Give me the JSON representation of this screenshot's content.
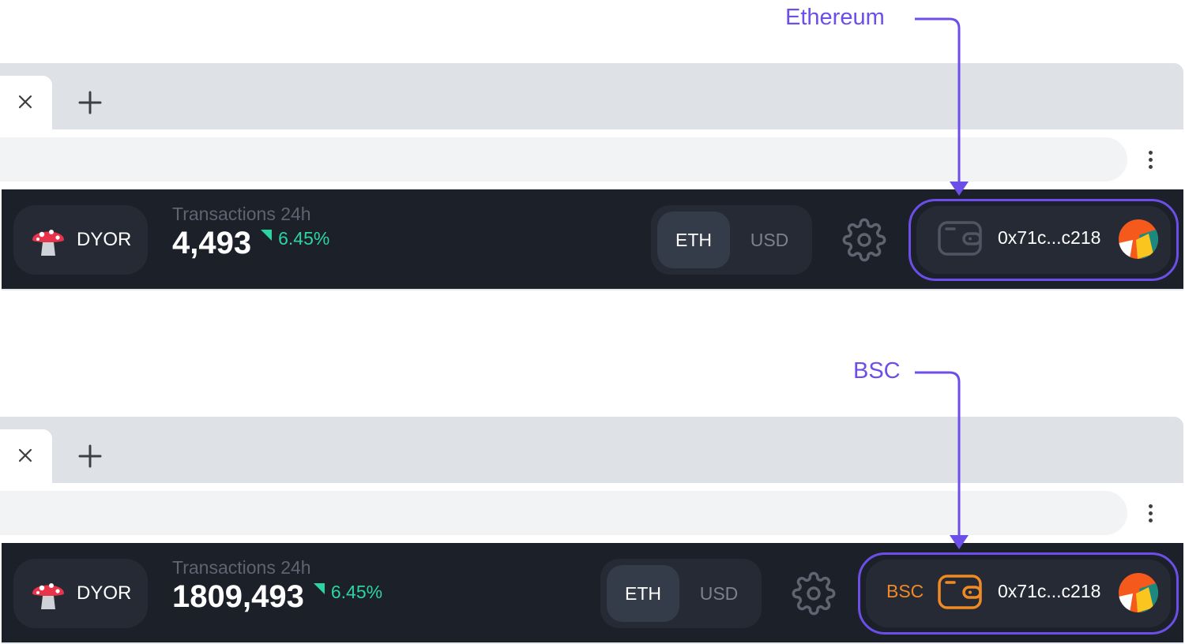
{
  "callouts": {
    "top": {
      "label": "Ethereum"
    },
    "bottom": {
      "label": "BSC"
    }
  },
  "colors": {
    "accent": "#6d4ee8",
    "appbar_bg": "#1c2029",
    "positive": "#2dd4a3",
    "bsc": "#f08a24"
  },
  "panels": [
    {
      "tab_close_icon": "close-icon",
      "new_tab_icon": "plus-icon",
      "menu_icon": "kebab-menu-icon",
      "brand": {
        "label": "DYOR",
        "icon": "mushroom-icon"
      },
      "stat": {
        "caption": "Transactions 24h",
        "value": "4,493",
        "change": "6.45%",
        "trend_icon": "trend-up-icon"
      },
      "currency": {
        "options": [
          "ETH",
          "USD"
        ],
        "selected": "ETH"
      },
      "settings_icon": "gear-icon",
      "wallet": {
        "network": "",
        "icon": "wallet-icon",
        "address": "0x71c...c218",
        "avatar": "jazzicon-avatar"
      }
    },
    {
      "tab_close_icon": "close-icon",
      "new_tab_icon": "plus-icon",
      "menu_icon": "kebab-menu-icon",
      "brand": {
        "label": "DYOR",
        "icon": "mushroom-icon"
      },
      "stat": {
        "caption": "Transactions 24h",
        "value": "1809,493",
        "change": "6.45%",
        "trend_icon": "trend-up-icon"
      },
      "currency": {
        "options": [
          "ETH",
          "USD"
        ],
        "selected": "ETH"
      },
      "settings_icon": "gear-icon",
      "wallet": {
        "network": "BSC",
        "icon": "wallet-icon",
        "address": "0x71c...c218",
        "avatar": "jazzicon-avatar"
      }
    }
  ]
}
